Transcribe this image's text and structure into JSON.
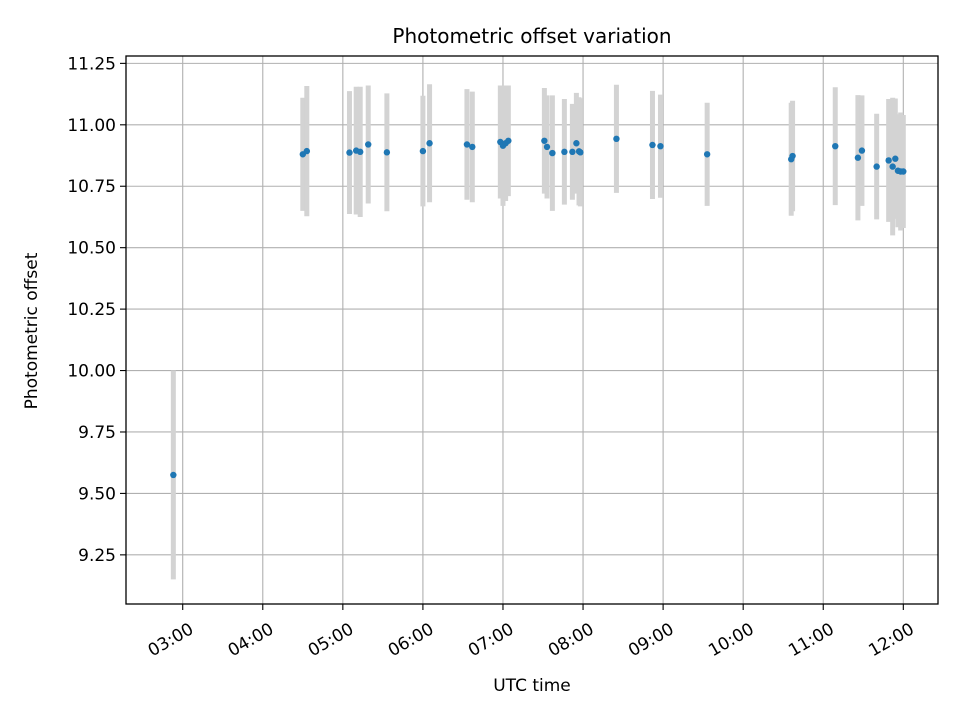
{
  "chart_data": {
    "type": "scatter",
    "title": "Photometric offset variation",
    "xlabel": "UTC time",
    "ylabel": "Photometric offset",
    "x_unit": "hours UTC",
    "xlim": [
      2.2917,
      12.4333
    ],
    "ylim": [
      9.05,
      11.28
    ],
    "x_ticks": [
      {
        "value": 3,
        "label": "03:00"
      },
      {
        "value": 4,
        "label": "04:00"
      },
      {
        "value": 5,
        "label": "05:00"
      },
      {
        "value": 6,
        "label": "06:00"
      },
      {
        "value": 7,
        "label": "07:00"
      },
      {
        "value": 8,
        "label": "08:00"
      },
      {
        "value": 9,
        "label": "09:00"
      },
      {
        "value": 10,
        "label": "10:00"
      },
      {
        "value": 11,
        "label": "11:00"
      },
      {
        "value": 12,
        "label": "12:00"
      }
    ],
    "y_ticks": [
      {
        "value": 9.25,
        "label": "9.25"
      },
      {
        "value": 9.5,
        "label": "9.50"
      },
      {
        "value": 9.75,
        "label": "9.75"
      },
      {
        "value": 10.0,
        "label": "10.00"
      },
      {
        "value": 10.25,
        "label": "10.25"
      },
      {
        "value": 10.5,
        "label": "10.50"
      },
      {
        "value": 10.75,
        "label": "10.75"
      },
      {
        "value": 11.0,
        "label": "11.00"
      },
      {
        "value": 11.25,
        "label": "11.25"
      }
    ],
    "grid": true,
    "x_tick_rotation_deg": 30,
    "colors": {
      "point": "#1f77b4",
      "errorbar": "#d3d3d3"
    },
    "series": [
      {
        "points": [
          {
            "x": 2.883,
            "y": 9.575,
            "err": 0.425
          },
          {
            "x": 4.5,
            "y": 10.88,
            "err": 0.23
          },
          {
            "x": 4.55,
            "y": 10.893,
            "err": 0.265
          },
          {
            "x": 5.083,
            "y": 10.887,
            "err": 0.25
          },
          {
            "x": 5.167,
            "y": 10.895,
            "err": 0.26
          },
          {
            "x": 5.217,
            "y": 10.89,
            "err": 0.265
          },
          {
            "x": 5.317,
            "y": 10.92,
            "err": 0.24
          },
          {
            "x": 5.55,
            "y": 10.888,
            "err": 0.24
          },
          {
            "x": 6.0,
            "y": 10.893,
            "err": 0.225
          },
          {
            "x": 6.083,
            "y": 10.925,
            "err": 0.24
          },
          {
            "x": 6.55,
            "y": 10.92,
            "err": 0.225
          },
          {
            "x": 6.617,
            "y": 10.91,
            "err": 0.225
          },
          {
            "x": 6.967,
            "y": 10.93,
            "err": 0.23
          },
          {
            "x": 7.0,
            "y": 10.915,
            "err": 0.245
          },
          {
            "x": 7.033,
            "y": 10.925,
            "err": 0.235
          },
          {
            "x": 7.067,
            "y": 10.935,
            "err": 0.225
          },
          {
            "x": 7.517,
            "y": 10.935,
            "err": 0.215
          },
          {
            "x": 7.55,
            "y": 10.91,
            "err": 0.21
          },
          {
            "x": 7.617,
            "y": 10.885,
            "err": 0.235
          },
          {
            "x": 7.767,
            "y": 10.89,
            "err": 0.215
          },
          {
            "x": 7.867,
            "y": 10.89,
            "err": 0.195
          },
          {
            "x": 7.917,
            "y": 10.925,
            "err": 0.205
          },
          {
            "x": 7.95,
            "y": 10.892,
            "err": 0.22
          },
          {
            "x": 7.967,
            "y": 10.888,
            "err": 0.22
          },
          {
            "x": 8.417,
            "y": 10.943,
            "err": 0.22
          },
          {
            "x": 8.867,
            "y": 10.918,
            "err": 0.22
          },
          {
            "x": 8.967,
            "y": 10.913,
            "err": 0.21
          },
          {
            "x": 9.55,
            "y": 10.88,
            "err": 0.21
          },
          {
            "x": 10.6,
            "y": 10.86,
            "err": 0.23
          },
          {
            "x": 10.617,
            "y": 10.873,
            "err": 0.225
          },
          {
            "x": 11.15,
            "y": 10.913,
            "err": 0.24
          },
          {
            "x": 11.433,
            "y": 10.866,
            "err": 0.255
          },
          {
            "x": 11.483,
            "y": 10.895,
            "err": 0.225
          },
          {
            "x": 11.667,
            "y": 10.83,
            "err": 0.215
          },
          {
            "x": 11.817,
            "y": 10.855,
            "err": 0.25
          },
          {
            "x": 11.867,
            "y": 10.83,
            "err": 0.28
          },
          {
            "x": 11.9,
            "y": 10.862,
            "err": 0.245
          },
          {
            "x": 11.933,
            "y": 10.813,
            "err": 0.23
          },
          {
            "x": 11.967,
            "y": 10.81,
            "err": 0.24
          },
          {
            "x": 12.0,
            "y": 10.81,
            "err": 0.23
          }
        ]
      }
    ]
  }
}
